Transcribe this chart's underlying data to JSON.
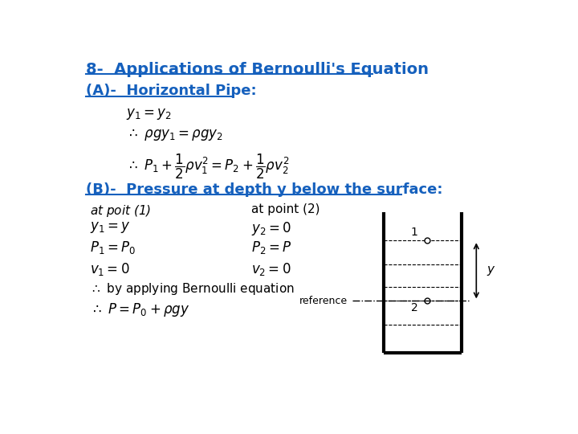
{
  "title": "8-  Applications of Bernoulli's Equation",
  "title_color": "#1560bd",
  "subtitle_A": "(A)-  Horizontal Pipe:",
  "subtitle_B": "(B)-  Pressure at depth y below the surface:",
  "subtitle_color": "#1560bd",
  "bg_color": "#ffffff",
  "text_color": "#000000",
  "eq1": "$y_1 = y_2$",
  "eq2": "$\\therefore\\ \\rho g y_1 = \\rho g y_2$",
  "eq3": "$\\therefore\\ P_1 + \\dfrac{1}{2}\\rho v_1^2 = P_2 + \\dfrac{1}{2}\\rho v_2^2$",
  "col1_header": "$at$ poit (1)",
  "col2_header": "at point (2)",
  "col1_lines": [
    "$y_1 = y$",
    "$P_1 = P_0$",
    "$v_1 = 0$"
  ],
  "col2_lines": [
    "$y_2 = 0$",
    "$P_2 = P$",
    "$v_2 = 0$"
  ],
  "conclusion1": "$\\therefore$ by applying Bernoulli equation",
  "conclusion2": "$\\therefore\\ P = P_0 + \\rho g y$",
  "reference_label": "reference"
}
